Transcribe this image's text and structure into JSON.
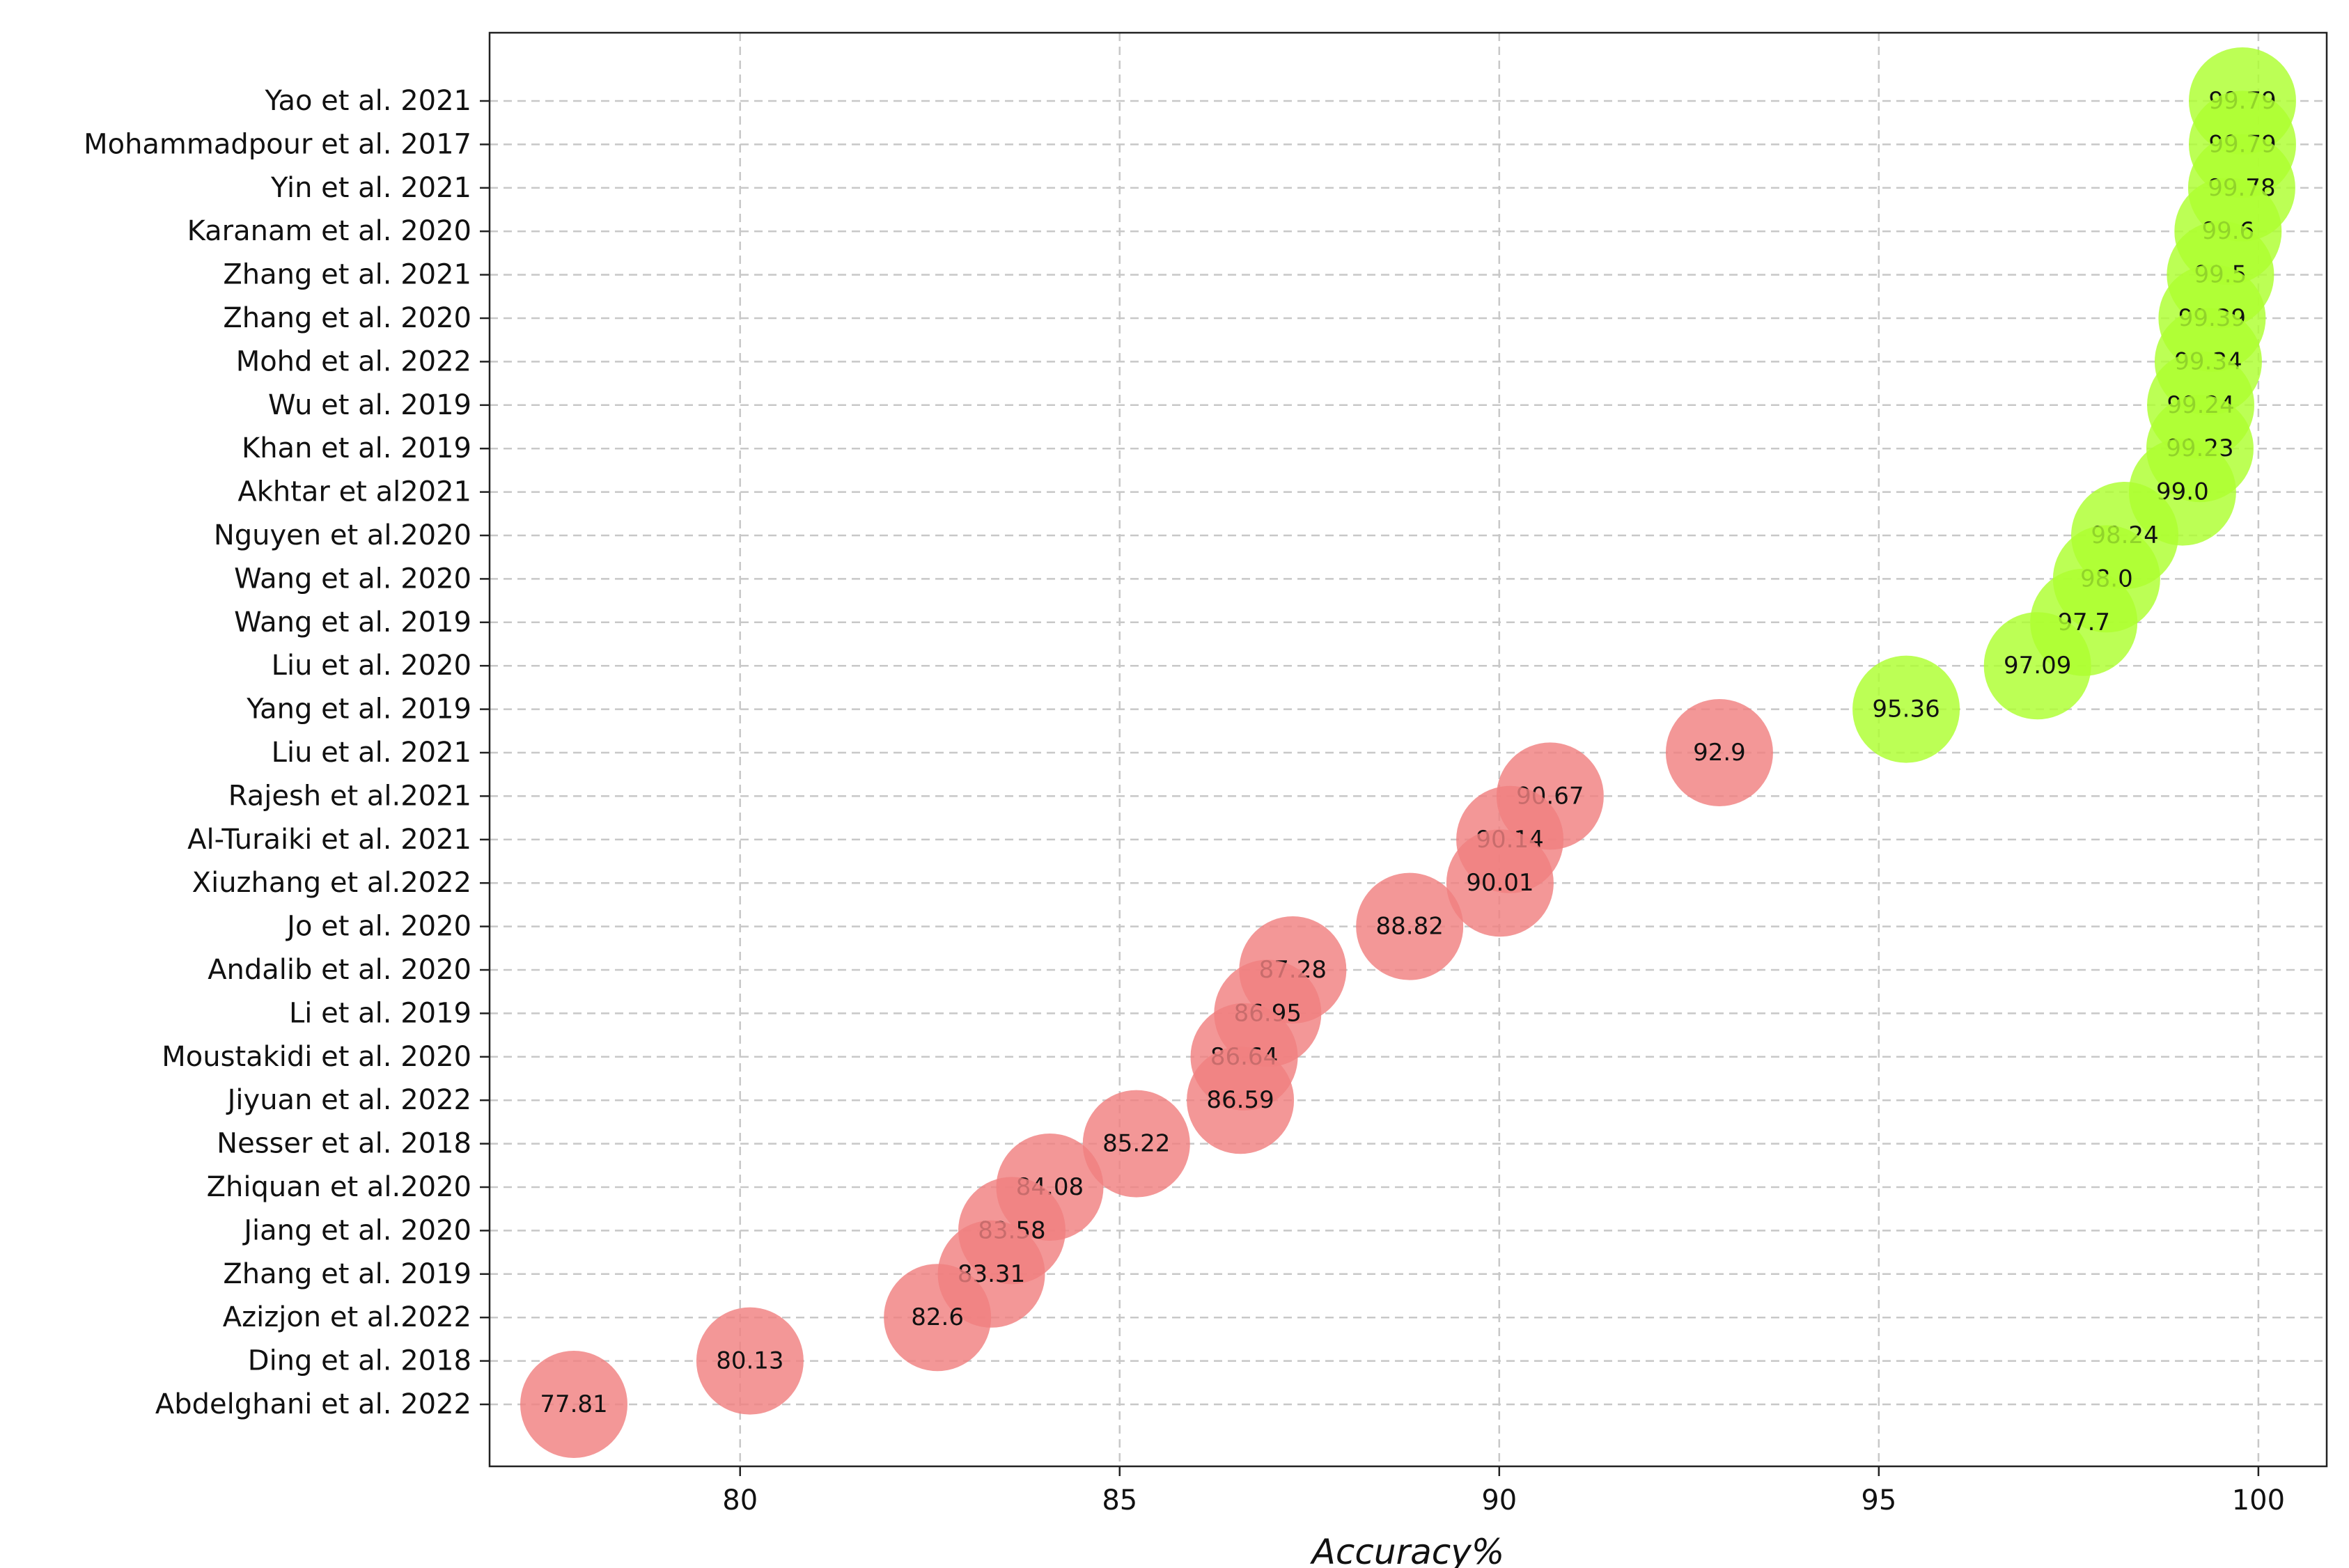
{
  "chart_data": {
    "type": "scatter",
    "xlabel": "Accuracy%",
    "ylabel": "",
    "title": "",
    "xlim": [
      76.7,
      100.9
    ],
    "xticks": [
      80,
      85,
      90,
      95,
      100
    ],
    "grid": true,
    "categories": [
      "Yao et al. 2021",
      "Mohammadpour et al. 2017",
      "Yin et al. 2021",
      "Karanam et al. 2020",
      "Zhang et al. 2021",
      "Zhang et al. 2020",
      "Mohd et al. 2022",
      "Wu et al. 2019",
      "Khan et al. 2019",
      "Akhtar et al2021",
      "Nguyen et al.2020",
      "Wang et al. 2020",
      "Wang et al. 2019",
      "Liu et al. 2020",
      "Yang et al. 2019",
      "Liu et al. 2021",
      "Rajesh et al.2021",
      "Al-Turaiki et al. 2021",
      "Xiuzhang  et al.2022",
      "Jo et al. 2020",
      "Andalib et al. 2020",
      "Li et al. 2019",
      "Moustakidi et al. 2020",
      "Jiyuan et al. 2022",
      "Nesser et al. 2018",
      "Zhiquan et al.2020",
      "Jiang et al. 2020",
      "Zhang et al. 2019",
      "Azizjon et al.2022",
      "Ding et al. 2018",
      "Abdelghani et al. 2022"
    ],
    "values": [
      99.79,
      99.79,
      99.78,
      99.6,
      99.5,
      99.39,
      99.34,
      99.24,
      99.23,
      99.0,
      98.24,
      98.0,
      97.7,
      97.09,
      95.36,
      92.9,
      90.67,
      90.14,
      90.01,
      88.82,
      87.28,
      86.95,
      86.64,
      86.59,
      85.22,
      84.08,
      83.58,
      83.31,
      82.6,
      80.13,
      77.81
    ],
    "labels": [
      "99.79",
      "99.79",
      "99.78",
      "99.6",
      "99.5",
      "99.39",
      "99.34",
      "99.24",
      "99.23",
      "99.0",
      "98.24",
      "98.0",
      "97.7",
      "97.09",
      "95.36",
      "92.9",
      "90.67",
      "90.14",
      "90.01",
      "88.82",
      "87.28",
      "86.95",
      "86.64",
      "86.59",
      "85.22",
      "84.08",
      "83.58",
      "83.31",
      "82.6",
      "80.13",
      "77.81"
    ],
    "threshold": 95,
    "colors": {
      "high": "#adff2f",
      "low": "#f08080"
    }
  }
}
